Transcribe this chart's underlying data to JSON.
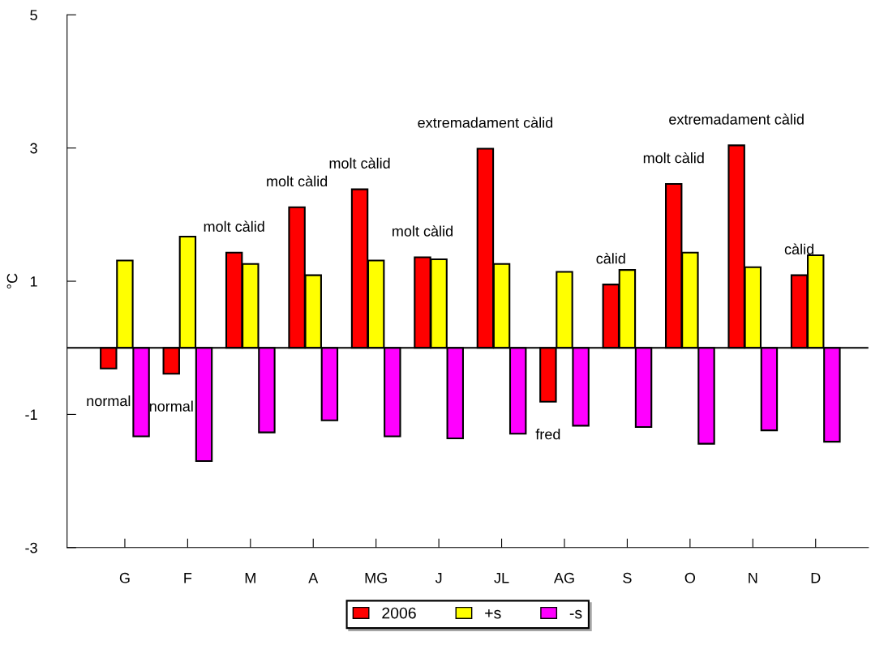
{
  "chart_data": {
    "type": "bar",
    "ylabel": "°C",
    "categories": [
      "G",
      "F",
      "M",
      "A",
      "MG",
      "J",
      "JL",
      "AG",
      "S",
      "O",
      "N",
      "D"
    ],
    "series": [
      {
        "name": "2006",
        "color": "#ff0000",
        "values": [
          -0.31,
          -0.39,
          1.43,
          2.11,
          2.38,
          1.36,
          2.99,
          -0.81,
          0.95,
          2.46,
          3.04,
          1.09
        ]
      },
      {
        "name": "+s",
        "color": "#ffff00",
        "values": [
          1.31,
          1.67,
          1.26,
          1.09,
          1.31,
          1.33,
          1.26,
          1.14,
          1.17,
          1.43,
          1.21,
          1.39
        ]
      },
      {
        "name": "-s",
        "color": "#ff00ff",
        "values": [
          -1.33,
          -1.7,
          -1.27,
          -1.09,
          -1.33,
          -1.36,
          -1.29,
          -1.17,
          -1.19,
          -1.44,
          -1.24,
          -1.41
        ]
      }
    ],
    "ylim": [
      -3,
      5
    ],
    "yticks": [
      -3,
      -1,
      1,
      3,
      5
    ],
    "ref_lines": [
      {
        "axis": "y",
        "value": 0,
        "color": "#000000"
      }
    ],
    "annotations": [
      "normal",
      "normal",
      "molt càlid",
      "molt càlid",
      "molt càlid",
      "molt càlid",
      "extremadament càlid",
      "fred",
      "càlid",
      "molt càlid",
      "extremadament càlid",
      "càlid"
    ],
    "grid": false,
    "legend": "bottom"
  }
}
